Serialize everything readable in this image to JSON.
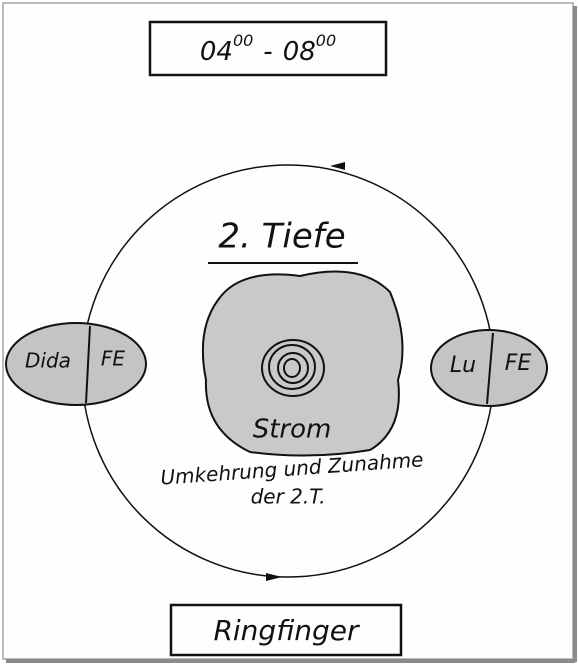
{
  "header": {
    "start_hour": "04",
    "start_minutes": "00",
    "separator": "-",
    "end_hour": "08",
    "end_minutes": "00"
  },
  "title": "2. Tiefe",
  "center": {
    "label": "Strom",
    "note_line1": "Umkehrung und Zunahme",
    "note_line2": "der 2.T."
  },
  "left_node": {
    "name": "Dida",
    "tag": "FE"
  },
  "right_node": {
    "name": "Lu",
    "tag": "FE"
  },
  "footer": "Ringfinger"
}
